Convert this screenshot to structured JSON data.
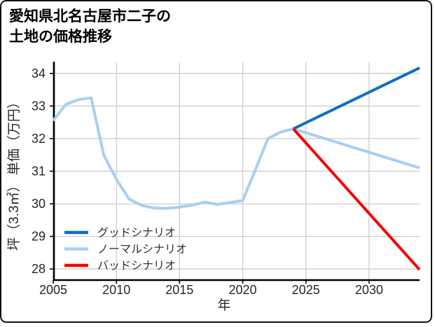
{
  "card": {
    "title_line1": "愛知県北名古屋市二子の",
    "title_line2": "土地の価格推移"
  },
  "chart_data": {
    "type": "line",
    "title": "愛知県北名古屋市二子の土地の価格推移",
    "xlabel": "年",
    "ylabel": "坪（3.3㎡） 単価（万円）",
    "xlim": [
      2005,
      2034
    ],
    "ylim": [
      27.66,
      34.34
    ],
    "xticks": [
      2005,
      2010,
      2015,
      2020,
      2025,
      2030
    ],
    "yticks": [
      28,
      29,
      30,
      31,
      32,
      33,
      34
    ],
    "grid": true,
    "legend_position": "lower left",
    "series": [
      {
        "id": "good",
        "name": "グッドシナリオ",
        "color": "#0e6fc4",
        "x": [
          2024,
          2034
        ],
        "y": [
          32.3,
          34.17
        ]
      },
      {
        "id": "normal",
        "name": "ノーマルシナリオ",
        "color": "#a9cef2",
        "x": [
          2005,
          2006,
          2007,
          2008,
          2009,
          2010,
          2011,
          2012,
          2013,
          2014,
          2015,
          2016,
          2017,
          2018,
          2019,
          2020,
          2021,
          2022,
          2023,
          2024,
          2034
        ],
        "y": [
          32.55,
          33.05,
          33.2,
          33.25,
          31.5,
          30.75,
          30.15,
          29.95,
          29.87,
          29.86,
          29.9,
          29.96,
          30.05,
          29.98,
          30.04,
          30.1,
          31.05,
          32.0,
          32.2,
          32.3,
          31.1
        ]
      },
      {
        "id": "bad",
        "name": "バッドシナリオ",
        "color": "#f40505",
        "x": [
          2024,
          2034
        ],
        "y": [
          32.3,
          27.98
        ]
      }
    ]
  }
}
